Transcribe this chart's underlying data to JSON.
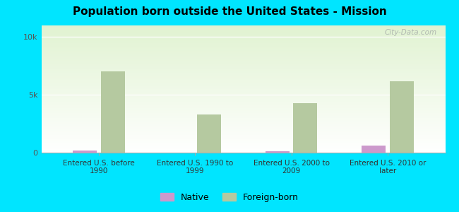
{
  "title": "Population born outside the United States - Mission",
  "categories": [
    "Entered U.S. before\n1990",
    "Entered U.S. 1990 to\n1999",
    "Entered U.S. 2000 to\n2009",
    "Entered U.S. 2010 or\nlater"
  ],
  "native_values": [
    200,
    0,
    100,
    600
  ],
  "foreign_born_values": [
    7000,
    3300,
    4300,
    6200
  ],
  "native_color": "#cc99cc",
  "foreign_born_color": "#b5c9a0",
  "background_outer": "#00e5ff",
  "yticks": [
    0,
    5000,
    10000
  ],
  "ytick_labels": [
    "0",
    "5k",
    "10k"
  ],
  "ylim": [
    0,
    11000
  ],
  "title_fontsize": 11,
  "watermark": "City-Data.com",
  "legend_native": "Native",
  "legend_foreign": "Foreign-born"
}
